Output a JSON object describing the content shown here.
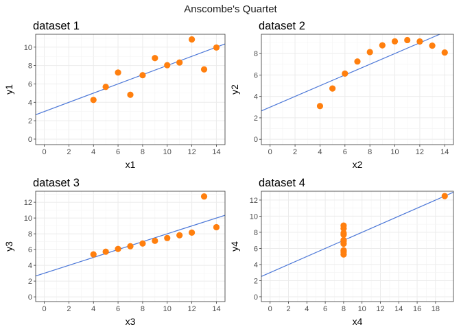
{
  "title": "Anscombe's Quartet",
  "colors": {
    "points": "#ff7f0e",
    "line": "#4e79d8"
  },
  "chart_data": [
    {
      "type": "scatter",
      "title": "dataset 1",
      "xlabel": "x1",
      "ylabel": "y1",
      "xlim": [
        -0.7,
        14.7
      ],
      "ylim": [
        -0.6,
        11.4
      ],
      "xticks": [
        0,
        2,
        4,
        6,
        8,
        10,
        12,
        14
      ],
      "yticks": [
        0,
        2,
        4,
        6,
        8,
        10
      ],
      "grid": true,
      "x": [
        10,
        8,
        13,
        9,
        11,
        14,
        6,
        4,
        12,
        7,
        5
      ],
      "y": [
        8.04,
        6.95,
        7.58,
        8.81,
        8.33,
        9.96,
        7.24,
        4.26,
        10.84,
        4.82,
        5.68
      ],
      "fit_line": {
        "intercept": 3.0,
        "slope": 0.5
      }
    },
    {
      "type": "scatter",
      "title": "dataset 2",
      "xlabel": "x2",
      "ylabel": "y2",
      "xlim": [
        -0.7,
        14.7
      ],
      "ylim": [
        -0.5,
        9.8
      ],
      "xticks": [
        0,
        2,
        4,
        6,
        8,
        10,
        12,
        14
      ],
      "yticks": [
        0,
        2,
        4,
        6,
        8
      ],
      "grid": true,
      "x": [
        10,
        8,
        13,
        9,
        11,
        14,
        6,
        4,
        12,
        7,
        5
      ],
      "y": [
        9.14,
        8.14,
        8.74,
        8.77,
        9.26,
        8.1,
        6.13,
        3.1,
        9.13,
        7.26,
        4.74
      ],
      "fit_line": {
        "intercept": 3.0,
        "slope": 0.5
      }
    },
    {
      "type": "scatter",
      "title": "dataset 3",
      "xlabel": "x3",
      "ylabel": "y3",
      "xlim": [
        -0.7,
        14.7
      ],
      "ylim": [
        -0.6,
        13.4
      ],
      "xticks": [
        0,
        2,
        4,
        6,
        8,
        10,
        12,
        14
      ],
      "yticks": [
        0,
        2,
        4,
        6,
        8,
        10,
        12
      ],
      "grid": true,
      "x": [
        10,
        8,
        13,
        9,
        11,
        14,
        6,
        4,
        12,
        7,
        5
      ],
      "y": [
        7.46,
        6.77,
        12.74,
        7.11,
        7.81,
        8.84,
        6.08,
        5.39,
        8.15,
        6.42,
        5.73
      ],
      "fit_line": {
        "intercept": 3.0,
        "slope": 0.5
      }
    },
    {
      "type": "scatter",
      "title": "dataset 4",
      "xlabel": "x4",
      "ylabel": "y4",
      "xlim": [
        -0.95,
        19.95
      ],
      "ylim": [
        -0.6,
        13.1
      ],
      "xticks": [
        0,
        2,
        4,
        6,
        8,
        10,
        12,
        14,
        16,
        18
      ],
      "yticks": [
        0,
        2,
        4,
        6,
        8,
        10,
        12
      ],
      "grid": true,
      "x": [
        8,
        8,
        8,
        8,
        8,
        8,
        8,
        19,
        8,
        8,
        8
      ],
      "y": [
        6.58,
        5.76,
        7.71,
        8.84,
        8.47,
        7.04,
        5.25,
        12.5,
        5.56,
        7.91,
        6.89
      ],
      "fit_line": {
        "intercept": 3.0,
        "slope": 0.5
      }
    }
  ]
}
